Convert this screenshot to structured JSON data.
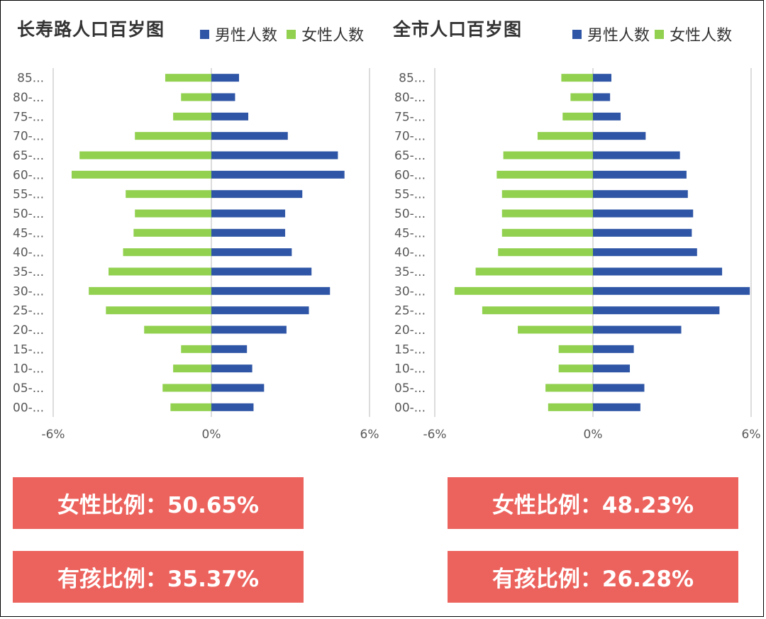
{
  "colors": {
    "male": "#2f56a6",
    "female": "#92d050",
    "axis_line": "#d0d0d0",
    "text": "#595959",
    "box": "#ec635e"
  },
  "legend": {
    "male_label": "男性人数",
    "female_label": "女性人数"
  },
  "age_groups": [
    "00-...",
    "05-...",
    "10-...",
    "15-...",
    "20-...",
    "25-...",
    "30-...",
    "35-...",
    "40-...",
    "45-...",
    "50-...",
    "55-...",
    "60-...",
    "65-...",
    "70-...",
    "75-...",
    "80-...",
    "85..."
  ],
  "x_ticks": [
    "-6%",
    "0%",
    "6%"
  ],
  "chart_data": [
    {
      "type": "bar",
      "title": "长寿路人口百岁图",
      "orientation": "horizontal",
      "xlim": [
        -6,
        6
      ],
      "categories": [
        "00-...",
        "05-...",
        "10-...",
        "15-...",
        "20-...",
        "25-...",
        "30-...",
        "35-...",
        "40-...",
        "45-...",
        "50-...",
        "55-...",
        "60-...",
        "65-...",
        "70-...",
        "75-...",
        "80-...",
        "85..."
      ],
      "series": [
        {
          "name": "男性人数",
          "values": [
            1.6,
            2.0,
            1.55,
            1.35,
            2.85,
            3.7,
            4.5,
            3.8,
            3.05,
            2.8,
            2.8,
            3.45,
            5.05,
            4.8,
            2.9,
            1.4,
            0.9,
            1.05
          ]
        },
        {
          "name": "女性人数",
          "values": [
            -1.55,
            -1.85,
            -1.45,
            -1.15,
            -2.55,
            -4.0,
            -4.65,
            -3.9,
            -3.35,
            -2.95,
            -2.9,
            -3.25,
            -5.3,
            -5.0,
            -2.9,
            -1.45,
            -1.15,
            -1.75
          ]
        }
      ],
      "legend": "top"
    },
    {
      "type": "bar",
      "title": "全市人口百岁图",
      "orientation": "horizontal",
      "xlim": [
        -6,
        6
      ],
      "categories": [
        "00-...",
        "05-...",
        "10-...",
        "15-...",
        "20-...",
        "25-...",
        "30-...",
        "35-...",
        "40-...",
        "45-...",
        "50-...",
        "55-...",
        "60-...",
        "65-...",
        "70-...",
        "75-...",
        "80-...",
        "85..."
      ],
      "series": [
        {
          "name": "男性人数",
          "values": [
            1.8,
            1.95,
            1.4,
            1.55,
            3.35,
            4.8,
            5.95,
            4.9,
            3.95,
            3.75,
            3.8,
            3.6,
            3.55,
            3.3,
            2.0,
            1.05,
            0.65,
            0.7
          ]
        },
        {
          "name": "女性人数",
          "values": [
            -1.7,
            -1.8,
            -1.3,
            -1.3,
            -2.85,
            -4.2,
            -5.25,
            -4.45,
            -3.6,
            -3.45,
            -3.45,
            -3.45,
            -3.65,
            -3.4,
            -2.1,
            -1.15,
            -0.85,
            -1.2
          ]
        }
      ],
      "legend": "top"
    }
  ],
  "stats": {
    "left_female": "女性比例：50.65%",
    "left_child": "有孩比例：35.37%",
    "right_female": "女性比例：48.23%",
    "right_child": "有孩比例：26.28%"
  }
}
